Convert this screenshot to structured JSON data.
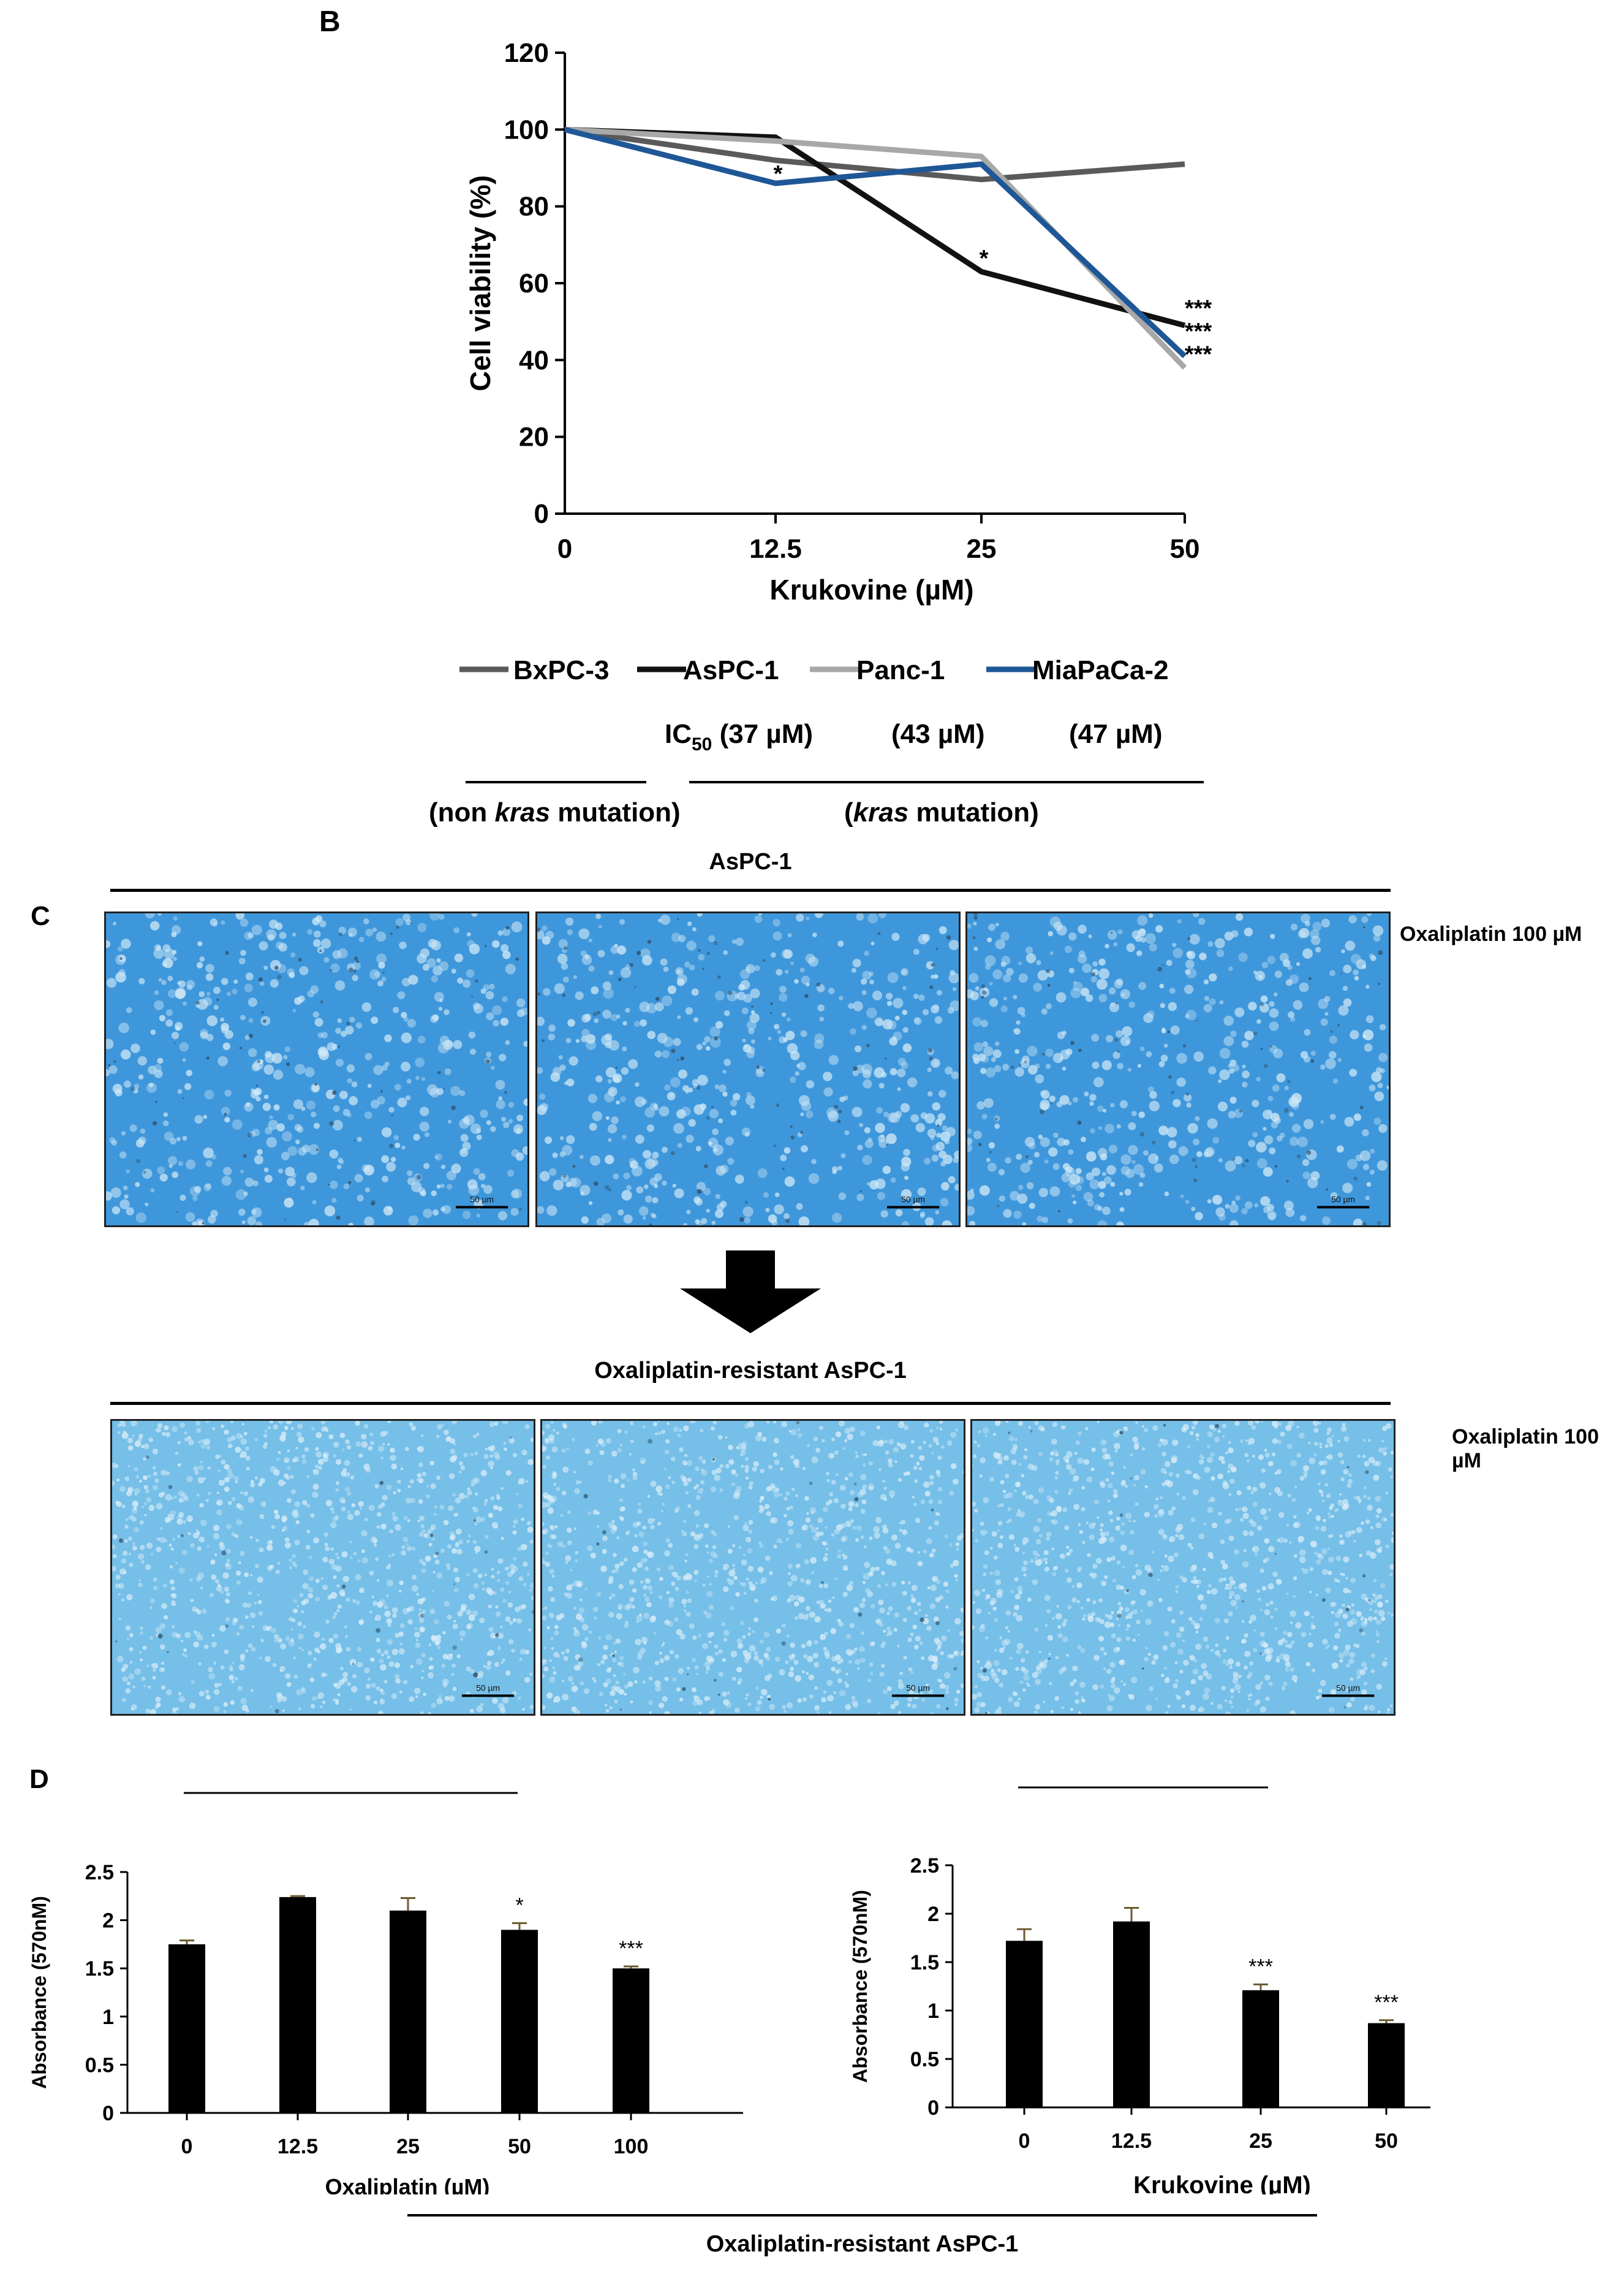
{
  "panels": {
    "B": "B",
    "C": "C",
    "D": "D"
  },
  "chart_data": [
    {
      "type": "line",
      "xlabel": "Krukovine (µM)",
      "ylabel": "Cell viability (%)",
      "x_ticks": [
        "0",
        "12.5",
        "25",
        "50"
      ],
      "x": [
        0,
        12.5,
        25,
        50
      ],
      "ylim": [
        0,
        120
      ],
      "y_ticks": [
        0,
        20,
        40,
        60,
        80,
        100,
        120
      ],
      "series": [
        {
          "name": "BxPC-3",
          "color": "#5a5a5a",
          "values": [
            100,
            92,
            87,
            91
          ]
        },
        {
          "name": "AsPC-1",
          "color": "#111111",
          "values": [
            100,
            98,
            63,
            49
          ]
        },
        {
          "name": "Panc-1",
          "color": "#a8a8a8",
          "values": [
            100,
            97,
            93,
            38
          ]
        },
        {
          "name": "MiaPaCa-2",
          "color": "#1f5796",
          "values": [
            100,
            86,
            91,
            41
          ]
        }
      ],
      "annotations": [
        {
          "text": "*",
          "x": 12.5,
          "y": 90
        },
        {
          "text": "*",
          "x": 25,
          "y": 68
        },
        {
          "text": "***",
          "x": 50,
          "y": 55
        },
        {
          "text": "***",
          "x": 50,
          "y": 49
        },
        {
          "text": "***",
          "x": 50,
          "y": 43
        }
      ],
      "ic50_label": "IC",
      "ic50_sub": "50",
      "ic50_values": [
        "(37 µM)",
        "(43 µM)",
        "(47 µM)"
      ],
      "group_non": {
        "open": "(non ",
        "italic": "kras",
        "close": " mutation)"
      },
      "group_mut": {
        "open": "(",
        "italic": "kras",
        "close": " mutation)"
      }
    },
    {
      "type": "bar",
      "categories": [
        "0",
        "12.5",
        "25",
        "50",
        "100"
      ],
      "values": [
        1.75,
        2.24,
        2.1,
        1.9,
        1.5
      ],
      "errors": [
        0.04,
        0.01,
        0.13,
        0.07,
        0.02
      ],
      "significance": [
        "",
        "",
        "",
        "*",
        "***"
      ],
      "ylim": [
        0,
        2.5
      ],
      "y_ticks": [
        "0",
        "0.5",
        "1",
        "1.5",
        "2",
        "2.5"
      ],
      "xlabel": "Oxaliplatin (µM)",
      "ylabel": "Absorbance (570nM)"
    },
    {
      "type": "bar",
      "categories": [
        "0",
        "12.5",
        "25",
        "50"
      ],
      "values": [
        1.72,
        1.92,
        1.21,
        0.87
      ],
      "errors": [
        0.12,
        0.14,
        0.06,
        0.03
      ],
      "significance": [
        "",
        "",
        "***",
        "***"
      ],
      "ylim": [
        0,
        2.5
      ],
      "y_ticks": [
        "0",
        "0.5",
        "1",
        "1.5",
        "2",
        "2.5"
      ],
      "xlabel": "Krukovine (µM)",
      "ylabel": "Absorbance (570nM)"
    }
  ],
  "panel_c": {
    "top_title": "AsPC-1",
    "bottom_title": "Oxaliplatin-resistant AsPC-1",
    "side_label": "Oxaliplatin 100 µM",
    "scale_label": "50 µm",
    "colors": {
      "top": "#3f97db",
      "bottom": "#75bfe8"
    }
  },
  "panel_d_footer": "Oxaliplatin-resistant AsPC-1"
}
